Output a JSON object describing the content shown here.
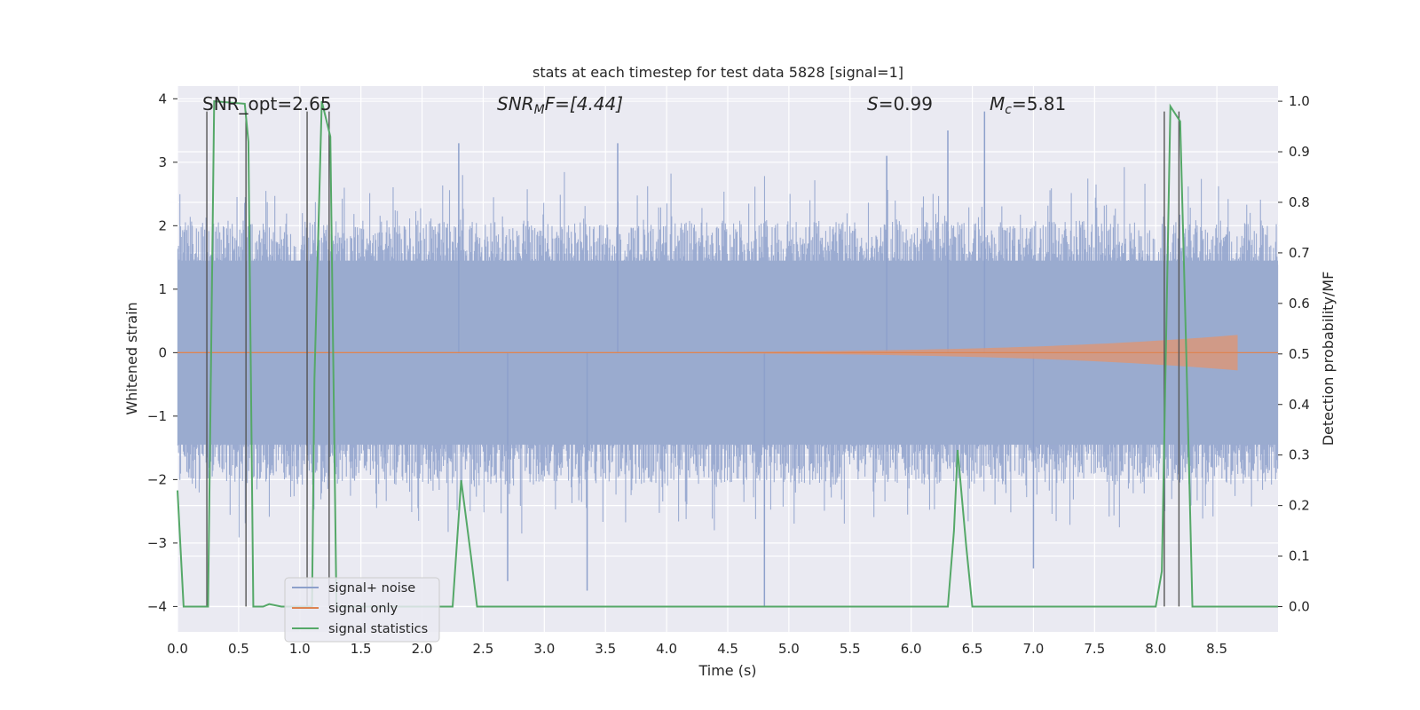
{
  "chart_data": {
    "type": "line",
    "title": "stats at each timestep for test data 5828 [signal=1]",
    "xlabel": "Time (s)",
    "ylabel_left": "Whitened strain",
    "ylabel_right": "Detection probability/MF",
    "xlim": [
      0,
      9.0
    ],
    "ylim_left": [
      -4.4,
      4.2
    ],
    "ylim_right": [
      -0.05,
      1.03
    ],
    "xticks": [
      "0.0",
      "0.5",
      "1.0",
      "1.5",
      "2.0",
      "2.5",
      "3.0",
      "3.5",
      "4.0",
      "4.5",
      "5.0",
      "5.5",
      "6.0",
      "6.5",
      "7.0",
      "7.5",
      "8.0",
      "8.5"
    ],
    "xtick_values": [
      0,
      0.5,
      1.0,
      1.5,
      2.0,
      2.5,
      3.0,
      3.5,
      4.0,
      4.5,
      5.0,
      5.5,
      6.0,
      6.5,
      7.0,
      7.5,
      8.0,
      8.5
    ],
    "yticks_left": [
      "−4",
      "−3",
      "−2",
      "−1",
      "0",
      "1",
      "2",
      "3",
      "4"
    ],
    "ytick_left_values": [
      -4,
      -3,
      -2,
      -1,
      0,
      1,
      2,
      3,
      4
    ],
    "yticks_right": [
      "0.0",
      "0.1",
      "0.2",
      "0.3",
      "0.4",
      "0.5",
      "0.6",
      "0.7",
      "0.8",
      "0.9",
      "1.0"
    ],
    "ytick_right_values": [
      0,
      0.1,
      0.2,
      0.3,
      0.4,
      0.5,
      0.6,
      0.7,
      0.8,
      0.9,
      1.0
    ],
    "annotations": {
      "snr_opt": "SNR_opt=2.65",
      "snr_mf_main": "SNR",
      "snr_mf_sub": "M",
      "snr_mf_rest": "F=[4.44]",
      "s_main": "S",
      "s_rest": "=0.99",
      "mc_main": "M",
      "mc_sub": "c",
      "mc_rest": "=5.81"
    },
    "legend": {
      "position": "lower-left",
      "entries": [
        {
          "label": "signal+ noise",
          "color": "#8da0cb"
        },
        {
          "label": "signal only",
          "color": "#dd8452"
        },
        {
          "label": "signal statistics",
          "color": "#55a868"
        }
      ]
    },
    "noise": {
      "name": "signal+ noise",
      "duration": 9.0,
      "typical_envelope": [
        -1.6,
        1.6
      ],
      "peaks": [
        {
          "t": 2.3,
          "v": 3.3
        },
        {
          "t": 3.6,
          "v": 3.3
        },
        {
          "t": 5.8,
          "v": 3.1
        },
        {
          "t": 6.6,
          "v": 3.8
        },
        {
          "t": 6.3,
          "v": 3.5
        },
        {
          "t": 4.8,
          "v": -4.0
        },
        {
          "t": 3.35,
          "v": -3.75
        },
        {
          "t": 7.0,
          "v": -3.4
        },
        {
          "t": 2.7,
          "v": -3.6
        }
      ]
    },
    "signal_only": {
      "name": "signal only",
      "t_end": 8.67,
      "max_amplitude": 0.28
    },
    "statistics": {
      "name": "signal statistics",
      "x": [
        0.0,
        0.05,
        0.25,
        0.3,
        0.55,
        0.58,
        0.62,
        0.7,
        0.75,
        0.85,
        1.1,
        1.12,
        1.18,
        1.25,
        1.3,
        2.1,
        2.25,
        2.32,
        2.4,
        2.45,
        6.3,
        6.35,
        6.38,
        6.45,
        6.5,
        8.0,
        8.05,
        8.12,
        8.2,
        8.25,
        8.3,
        9.0
      ],
      "y": [
        0.23,
        0.0,
        0.0,
        1.0,
        0.995,
        0.92,
        0.0,
        0.0,
        0.005,
        0.0,
        0.0,
        0.45,
        1.0,
        0.93,
        0.0,
        0.0,
        0.0,
        0.25,
        0.1,
        0.0,
        0.0,
        0.15,
        0.31,
        0.12,
        0.0,
        0.0,
        0.07,
        0.99,
        0.96,
        0.5,
        0.0,
        0.0
      ]
    },
    "vertical_lines": [
      {
        "t": 0.24,
        "from": -4.0,
        "to": 3.8
      },
      {
        "t": 0.56,
        "from": -4.0,
        "to": 3.8
      },
      {
        "t": 1.06,
        "from": -4.0,
        "to": 3.8
      },
      {
        "t": 1.24,
        "from": -4.0,
        "to": 3.8
      },
      {
        "t": 8.07,
        "from": -4.0,
        "to": 3.8
      },
      {
        "t": 8.19,
        "from": -4.0,
        "to": 3.8
      }
    ]
  }
}
